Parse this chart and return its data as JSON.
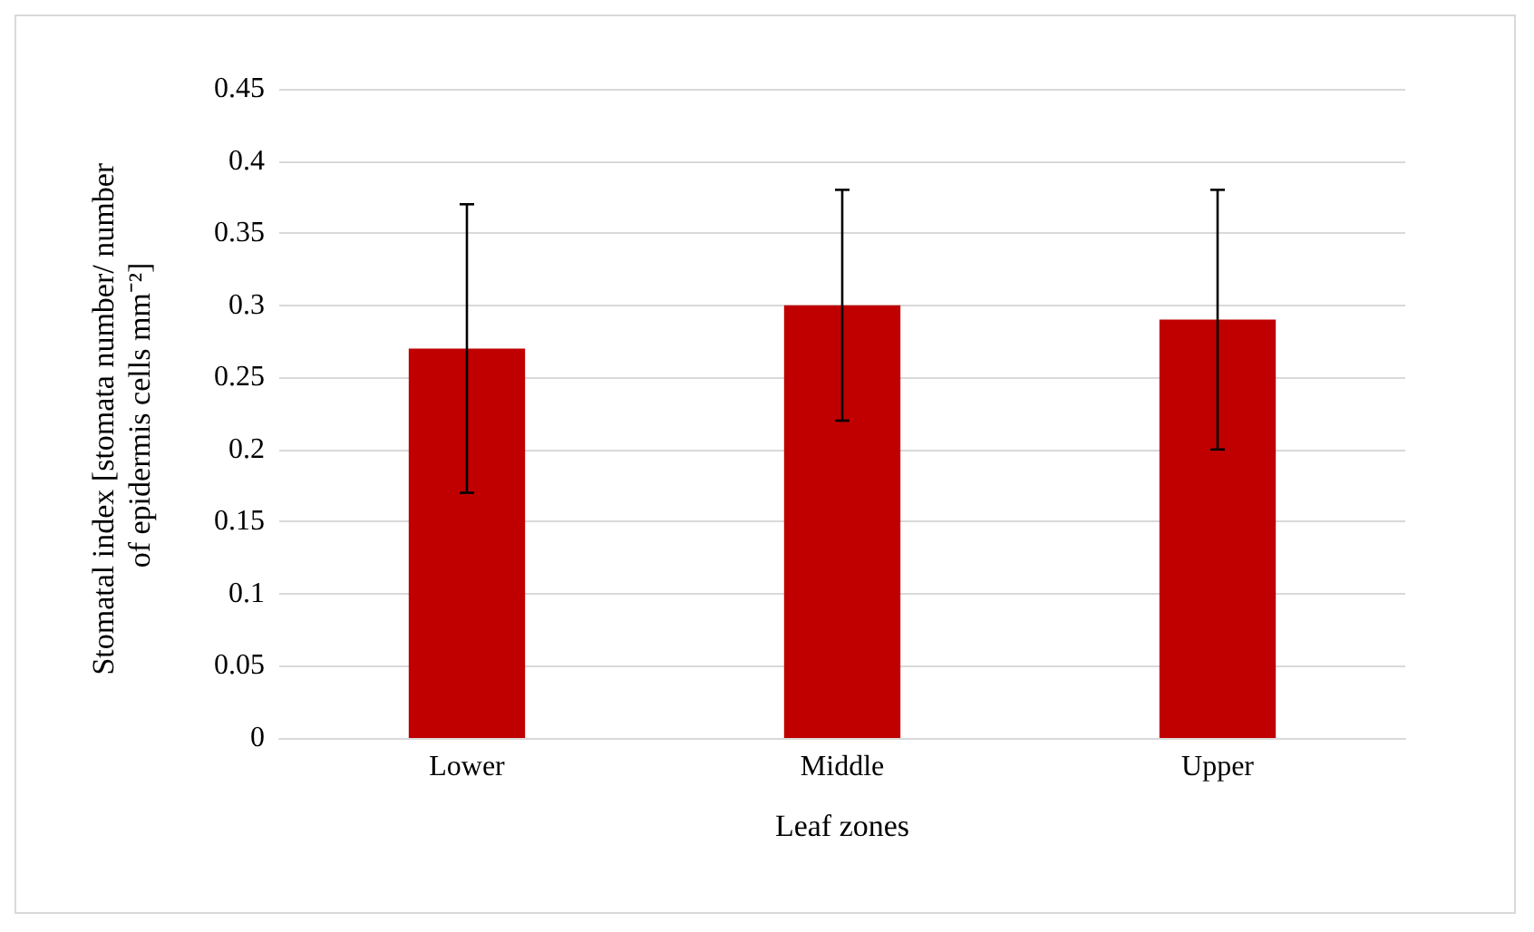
{
  "chart_data": {
    "type": "bar",
    "xlabel": "Leaf zones",
    "ylabel": "Stomatal index [stomata number/ number of epidermis cells mm⁻²]",
    "categories": [
      "Lower",
      "Middle",
      "Upper"
    ],
    "values": [
      0.27,
      0.3,
      0.29
    ],
    "errors": [
      0.1,
      0.08,
      0.09
    ],
    "color": "#c00000",
    "ylim": [
      0,
      0.45
    ],
    "yticks": [
      0,
      0.05,
      0.1,
      0.15,
      0.2,
      0.25,
      0.3,
      0.35,
      0.4,
      0.45
    ],
    "grid": "y"
  }
}
